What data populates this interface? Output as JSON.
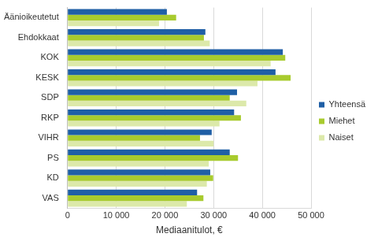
{
  "chart_data": {
    "type": "bar",
    "orientation": "horizontal",
    "categories": [
      "Äänioikeutetut",
      "Ehdokkaat",
      "KOK",
      "KESK",
      "SDP",
      "RKP",
      "VIHR",
      "PS",
      "KD",
      "VAS"
    ],
    "series": [
      {
        "name": "Yhteensä",
        "color": "#1f5fa6",
        "values": [
          20400,
          28300,
          44200,
          42700,
          34800,
          34200,
          29600,
          33300,
          29300,
          26600
        ]
      },
      {
        "name": "Miehet",
        "color": "#a8cb2e",
        "values": [
          22300,
          28000,
          44700,
          45800,
          33300,
          35600,
          27200,
          35000,
          29900,
          27900
        ]
      },
      {
        "name": "Naiset",
        "color": "#dce9aa",
        "values": [
          18800,
          29200,
          41700,
          39000,
          36700,
          31200,
          30000,
          29000,
          28600,
          24500
        ]
      }
    ],
    "x_label": "Mediaanitulot, €",
    "xlim": [
      0,
      50000
    ],
    "xticks": [
      0,
      {
        "value": 10000,
        "label": "10 000"
      },
      {
        "value": 20000,
        "label": "20 000"
      },
      {
        "value": 30000,
        "label": "30 000"
      },
      {
        "value": 40000,
        "label": "40 000"
      },
      {
        "value": 50000,
        "label": "50 000"
      }
    ],
    "grid": true,
    "legend": "right"
  }
}
